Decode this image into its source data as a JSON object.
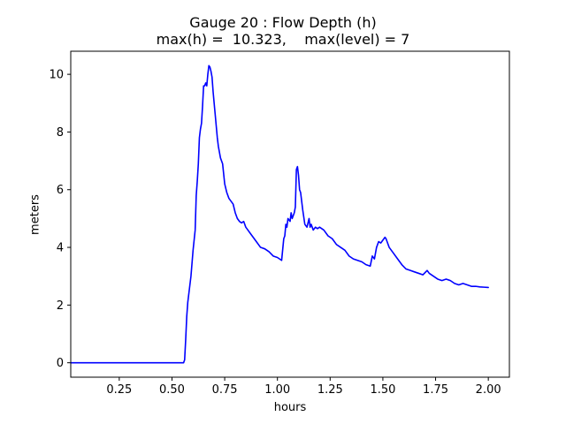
{
  "chart_data": {
    "type": "line",
    "title": "Gauge 20 : Flow Depth (h)",
    "subtitle": "max(h) =  10.323,    max(level) = 7",
    "xlabel": "hours",
    "ylabel": "meters",
    "xlim": [
      0.02,
      2.1
    ],
    "ylim": [
      -0.5,
      10.8
    ],
    "xticks": [
      "0.25",
      "0.50",
      "0.75",
      "1.00",
      "1.25",
      "1.50",
      "1.75",
      "2.00"
    ],
    "yticks": [
      "0",
      "2",
      "4",
      "6",
      "8",
      "10"
    ],
    "line_color": "#0000ff",
    "grid": false,
    "series": [
      {
        "x": [
          0.02,
          0.25,
          0.5,
          0.555,
          0.56,
          0.565,
          0.57,
          0.575,
          0.58,
          0.59,
          0.6,
          0.61,
          0.615,
          0.62,
          0.625,
          0.63,
          0.635,
          0.64,
          0.645,
          0.65,
          0.655,
          0.66,
          0.665,
          0.67,
          0.675,
          0.68,
          0.685,
          0.69,
          0.695,
          0.7,
          0.705,
          0.71,
          0.715,
          0.72,
          0.73,
          0.74,
          0.75,
          0.76,
          0.77,
          0.78,
          0.79,
          0.8,
          0.81,
          0.82,
          0.83,
          0.84,
          0.85,
          0.86,
          0.87,
          0.88,
          0.9,
          0.92,
          0.94,
          0.96,
          0.98,
          1.0,
          1.02,
          1.03,
          1.035,
          1.04,
          1.045,
          1.05,
          1.06,
          1.065,
          1.07,
          1.08,
          1.085,
          1.09,
          1.095,
          1.1,
          1.105,
          1.11,
          1.12,
          1.13,
          1.14,
          1.15,
          1.155,
          1.16,
          1.17,
          1.18,
          1.19,
          1.2,
          1.22,
          1.24,
          1.26,
          1.28,
          1.3,
          1.32,
          1.34,
          1.36,
          1.38,
          1.4,
          1.42,
          1.44,
          1.45,
          1.46,
          1.47,
          1.48,
          1.49,
          1.5,
          1.51,
          1.515,
          1.52,
          1.53,
          1.55,
          1.57,
          1.59,
          1.61,
          1.63,
          1.65,
          1.67,
          1.69,
          1.71,
          1.72,
          1.74,
          1.76,
          1.78,
          1.8,
          1.82,
          1.84,
          1.86,
          1.88,
          1.9,
          1.92,
          1.94,
          1.96,
          1.98,
          2.0
        ],
        "values": [
          0,
          0,
          0,
          0,
          0.1,
          0.8,
          1.6,
          2.1,
          2.4,
          3.0,
          3.9,
          4.6,
          5.8,
          6.3,
          6.9,
          7.8,
          8.1,
          8.3,
          8.9,
          9.6,
          9.6,
          9.7,
          9.6,
          10.0,
          10.3,
          10.25,
          10.1,
          9.9,
          9.4,
          9.0,
          8.6,
          8.2,
          7.8,
          7.5,
          7.1,
          6.9,
          6.2,
          5.9,
          5.7,
          5.6,
          5.5,
          5.2,
          5.0,
          4.9,
          4.85,
          4.9,
          4.7,
          4.6,
          4.5,
          4.4,
          4.2,
          4.0,
          3.95,
          3.85,
          3.7,
          3.65,
          3.55,
          4.3,
          4.4,
          4.8,
          4.7,
          5.0,
          4.9,
          5.2,
          5.0,
          5.2,
          5.4,
          6.7,
          6.8,
          6.5,
          6.0,
          5.9,
          5.3,
          4.8,
          4.7,
          5.0,
          4.7,
          4.8,
          4.6,
          4.7,
          4.65,
          4.7,
          4.6,
          4.4,
          4.3,
          4.1,
          4.0,
          3.9,
          3.7,
          3.6,
          3.55,
          3.5,
          3.4,
          3.35,
          3.7,
          3.6,
          4.0,
          4.2,
          4.15,
          4.25,
          4.35,
          4.3,
          4.2,
          4.0,
          3.8,
          3.6,
          3.4,
          3.25,
          3.2,
          3.15,
          3.1,
          3.05,
          3.2,
          3.1,
          3.0,
          2.9,
          2.85,
          2.9,
          2.85,
          2.75,
          2.7,
          2.75,
          2.7,
          2.65,
          2.65,
          2.63,
          2.62,
          2.61
        ]
      }
    ]
  }
}
